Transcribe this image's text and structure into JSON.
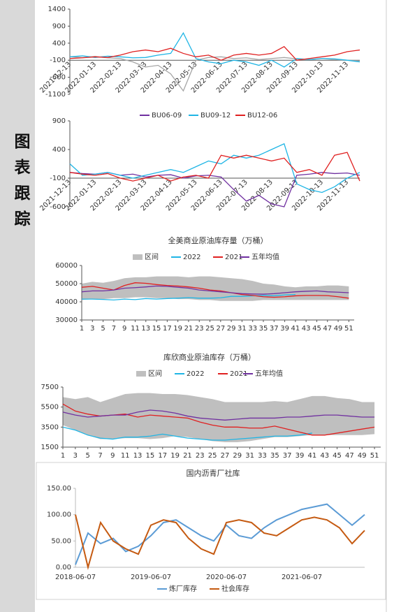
{
  "sidebar": {
    "label": "图表跟踪"
  },
  "chart_data": [
    {
      "type": "line",
      "x_axis_crosses": -100,
      "categories": [
        "2021-12-13",
        null,
        "2022-01-13",
        null,
        "2022-02-13",
        null,
        "2022-03-13",
        null,
        "2022-04-13",
        null,
        "2022-05-13",
        null,
        "2022-06-13",
        null,
        "2022-07-13",
        null,
        "2022-08-13",
        null,
        "2022-09-13",
        null,
        "2022-10-13",
        null,
        "2022-11-13",
        null
      ],
      "ylim": [
        -1100,
        1400
      ],
      "yticks": [
        -1100,
        -600,
        -100,
        400,
        900,
        1400
      ],
      "series": [
        {
          "color": "#a6a6a6",
          "values": [
            0,
            -20,
            10,
            -30,
            -50,
            -150,
            -300,
            -250,
            -500,
            -1000,
            -100,
            -20,
            0,
            -50,
            -30,
            -80,
            -50,
            -20,
            -60,
            -80,
            -50,
            -80,
            -100,
            -120
          ]
        },
        {
          "color": "#1fb5e5",
          "values": [
            0,
            30,
            -20,
            20,
            0,
            -30,
            -20,
            50,
            100,
            700,
            -50,
            -150,
            -200,
            -100,
            -150,
            -250,
            -100,
            -300,
            -50,
            -80,
            -50,
            -60,
            -100,
            -150
          ]
        },
        {
          "color": "#e02020",
          "values": [
            -50,
            -30,
            0,
            -20,
            50,
            150,
            200,
            150,
            250,
            100,
            0,
            50,
            -100,
            50,
            100,
            50,
            100,
            300,
            -100,
            -50,
            0,
            50,
            150,
            200
          ]
        }
      ]
    },
    {
      "type": "line",
      "x_axis_crosses": -100,
      "categories": [
        "2021-12-13",
        null,
        "2022-01-13",
        null,
        "2022-02-13",
        null,
        "2022-03-13",
        null,
        "2022-04-13",
        null,
        "2022-05-13",
        null,
        "2022-06-13",
        null,
        "2022-07-13",
        null,
        "2022-08-13",
        null,
        "2022-09-13",
        null,
        "2022-10-13",
        null,
        "2022-11-13",
        null
      ],
      "ylim": [
        -600,
        900
      ],
      "yticks": [
        -600,
        -100,
        400,
        900
      ],
      "series": [
        {
          "name": "BU06-09",
          "color": "#7030a0",
          "values": [
            0,
            -20,
            -30,
            0,
            -50,
            -30,
            -80,
            -50,
            -40,
            -100,
            -60,
            -50,
            -80,
            -300,
            -500,
            -400,
            -550,
            -600,
            -50,
            -30,
            0,
            -20,
            -10,
            -50
          ]
        },
        {
          "name": "BU09-12",
          "color": "#1fb5e5",
          "values": [
            150,
            -50,
            -30,
            0,
            -50,
            -100,
            -50,
            0,
            50,
            0,
            100,
            200,
            150,
            300,
            250,
            300,
            400,
            500,
            -200,
            -300,
            -350,
            -250,
            -100,
            0
          ]
        },
        {
          "name": "BU12-06",
          "color": "#e02020",
          "values": [
            0,
            -30,
            -50,
            -20,
            -100,
            -150,
            -100,
            -50,
            -150,
            -80,
            -50,
            -100,
            300,
            250,
            300,
            250,
            200,
            250,
            0,
            50,
            -50,
            300,
            350,
            -150
          ]
        }
      ]
    },
    {
      "type": "line",
      "title": "全美商业原油库存量（万桶）",
      "x": [
        1,
        3,
        5,
        7,
        9,
        11,
        13,
        15,
        17,
        19,
        21,
        23,
        25,
        27,
        29,
        31,
        33,
        35,
        37,
        39,
        41,
        43,
        45,
        47,
        49,
        51
      ],
      "xticks": [
        1,
        3,
        5,
        7,
        9,
        11,
        13,
        15,
        17,
        19,
        21,
        23,
        25,
        27,
        29,
        31,
        33,
        35,
        37,
        39,
        41,
        43,
        45,
        47,
        49,
        51
      ],
      "xlim": [
        1,
        52
      ],
      "ylim": [
        30000,
        60000
      ],
      "yticks": [
        30000,
        40000,
        50000,
        60000
      ],
      "series": [
        {
          "name": "区间",
          "color": "#bfbfbf",
          "high": [
            50000,
            51000,
            50500,
            51500,
            53000,
            53500,
            53500,
            54000,
            54000,
            54000,
            53500,
            54000,
            54000,
            53500,
            53000,
            52500,
            51500,
            50000,
            49500,
            48500,
            48000,
            48500,
            48500,
            49000,
            49000,
            48500
          ],
          "low": [
            41000,
            41500,
            41500,
            42000,
            42000,
            42500,
            42500,
            42000,
            42000,
            41500,
            41500,
            41000,
            41000,
            40500,
            40500,
            40500,
            40500,
            41000,
            41000,
            41000,
            41000,
            41000,
            41000,
            41000,
            41000,
            41000
          ]
        },
        {
          "name": "2022",
          "color": "#1fb5e5",
          "values": [
            41500,
            41500,
            41300,
            41000,
            41500,
            41200,
            41800,
            41500,
            41800,
            42000,
            42300,
            42000,
            42000,
            42200,
            43000,
            43000,
            43300,
            43500,
            43300,
            43800,
            44000,
            null,
            null,
            null,
            null,
            null
          ]
        },
        {
          "name": "2021",
          "color": "#e02020",
          "values": [
            48000,
            48500,
            47500,
            46500,
            49000,
            50500,
            50200,
            49500,
            49000,
            48700,
            48200,
            47500,
            46500,
            46000,
            45000,
            44000,
            43500,
            42800,
            42500,
            42800,
            43300,
            43500,
            43500,
            43400,
            42800,
            42000
          ]
        },
        {
          "name": "五年均值",
          "color": "#7030a0",
          "values": [
            45500,
            46000,
            46000,
            46500,
            47500,
            47800,
            48200,
            48700,
            48500,
            48000,
            47500,
            46500,
            46000,
            45500,
            45000,
            44500,
            44300,
            44200,
            44500,
            45000,
            45500,
            45800,
            46000,
            45500,
            45300,
            45000
          ]
        }
      ]
    },
    {
      "type": "line",
      "title": "库欣商业原油库存（万桶）",
      "x": [
        1,
        3,
        5,
        7,
        9,
        11,
        13,
        15,
        17,
        19,
        21,
        23,
        25,
        27,
        29,
        31,
        33,
        35,
        37,
        39,
        41,
        43,
        45,
        47,
        49,
        51
      ],
      "xticks": [
        1,
        3,
        5,
        7,
        9,
        11,
        13,
        15,
        17,
        19,
        21,
        23,
        25,
        27,
        29,
        31,
        33,
        35,
        37,
        39,
        41,
        43,
        45,
        47,
        49,
        51
      ],
      "xlim": [
        1,
        52
      ],
      "ylim": [
        1500,
        7500
      ],
      "yticks": [
        1500,
        3500,
        5500,
        7500
      ],
      "series": [
        {
          "name": "区间",
          "color": "#bfbfbf",
          "high": [
            6500,
            6300,
            6500,
            6000,
            6400,
            6800,
            6900,
            6900,
            6800,
            6800,
            6700,
            6500,
            6300,
            6000,
            6000,
            6000,
            6000,
            6100,
            6000,
            6300,
            6600,
            6600,
            6400,
            6300,
            6000,
            6000
          ],
          "low": [
            3700,
            3200,
            2700,
            2300,
            2300,
            2400,
            2400,
            2300,
            2400,
            2600,
            2500,
            2300,
            2100,
            2000,
            2000,
            2100,
            2300,
            2500,
            2500,
            2600,
            2700,
            2700,
            2700,
            2700,
            2700,
            2800
          ]
        },
        {
          "name": "2022",
          "color": "#1fb5e5",
          "values": [
            3500,
            3200,
            2700,
            2400,
            2300,
            2500,
            2500,
            2600,
            2800,
            2600,
            2400,
            2300,
            2200,
            2200,
            2300,
            2400,
            2500,
            2600,
            2600,
            2700,
            2900,
            null,
            null,
            null,
            null,
            null
          ]
        },
        {
          "name": "2021",
          "color": "#e02020",
          "values": [
            5800,
            5100,
            4800,
            4600,
            4700,
            4800,
            4500,
            4700,
            4600,
            4500,
            4400,
            4000,
            3700,
            3500,
            3500,
            3400,
            3400,
            3600,
            3300,
            3000,
            2700,
            2700,
            2900,
            3100,
            3300,
            3500
          ]
        },
        {
          "name": "五年均值",
          "color": "#7030a0",
          "values": [
            5000,
            4700,
            4500,
            4600,
            4700,
            4700,
            5000,
            5200,
            5100,
            4900,
            4600,
            4400,
            4300,
            4200,
            4300,
            4400,
            4400,
            4400,
            4500,
            4500,
            4600,
            4700,
            4700,
            4600,
            4500,
            4500
          ]
        }
      ]
    },
    {
      "type": "line",
      "title": "国内沥青厂社库",
      "categories": [
        "2018-06-07",
        null,
        null,
        null,
        null,
        null,
        "2019-06-07",
        null,
        null,
        null,
        null,
        null,
        "2020-06-07",
        null,
        null,
        null,
        null,
        null,
        "2021-06-07",
        null,
        null,
        null,
        null,
        null
      ],
      "ylim": [
        0,
        150
      ],
      "yticks": [
        {
          "value": 0,
          "label": "0.00"
        },
        {
          "value": 50,
          "label": "50.00"
        },
        {
          "value": 100,
          "label": "100.00"
        },
        {
          "value": 150,
          "label": "150.00"
        }
      ],
      "series": [
        {
          "name": "炼厂库存",
          "color": "#5b9bd5",
          "values": [
            5,
            65,
            45,
            55,
            30,
            40,
            60,
            85,
            90,
            75,
            60,
            50,
            80,
            60,
            55,
            75,
            90,
            100,
            110,
            115,
            120,
            100,
            80,
            100
          ]
        },
        {
          "name": "社会库存",
          "color": "#c55a11",
          "values": [
            100,
            0,
            85,
            50,
            35,
            25,
            80,
            90,
            85,
            55,
            35,
            25,
            85,
            90,
            85,
            65,
            60,
            75,
            90,
            95,
            90,
            75,
            45,
            70
          ]
        }
      ]
    }
  ]
}
